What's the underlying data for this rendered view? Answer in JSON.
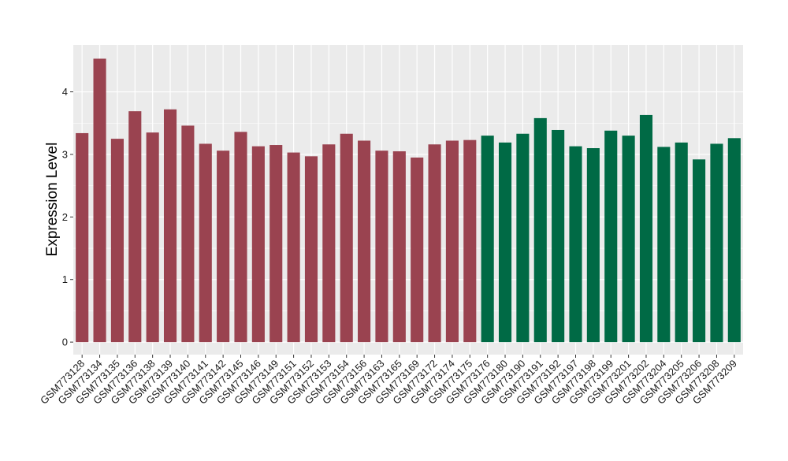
{
  "chart_data": {
    "type": "bar",
    "title": "",
    "xlabel": "",
    "ylabel": "Expression Level",
    "ylim": [
      -0.2,
      4.75
    ],
    "yticks": [
      0,
      1,
      2,
      3,
      4
    ],
    "grid": true,
    "legend": "none",
    "colors": {
      "group1": "#9a4350",
      "group2": "#006a45",
      "panel": "#ebebeb",
      "grid": "#ffffff",
      "text": "#1a1a1a"
    },
    "categories": [
      "GSM773128",
      "GSM773134",
      "GSM773135",
      "GSM773136",
      "GSM773138",
      "GSM773139",
      "GSM773140",
      "GSM773141",
      "GSM773142",
      "GSM773145",
      "GSM773146",
      "GSM773149",
      "GSM773151",
      "GSM773152",
      "GSM773153",
      "GSM773154",
      "GSM773156",
      "GSM773163",
      "GSM773165",
      "GSM773169",
      "GSM773172",
      "GSM773174",
      "GSM773175",
      "GSM773176",
      "GSM773180",
      "GSM773190",
      "GSM773191",
      "GSM773192",
      "GSM773197",
      "GSM773198",
      "GSM773199",
      "GSM773201",
      "GSM773202",
      "GSM773204",
      "GSM773205",
      "GSM773206",
      "GSM773208",
      "GSM773209"
    ],
    "values": [
      3.34,
      4.53,
      3.25,
      3.69,
      3.35,
      3.72,
      3.46,
      3.17,
      3.06,
      3.36,
      3.13,
      3.15,
      3.03,
      2.97,
      3.16,
      3.33,
      3.22,
      3.06,
      3.05,
      2.95,
      3.16,
      3.22,
      3.23,
      3.3,
      3.19,
      3.33,
      3.58,
      3.39,
      3.13,
      3.1,
      3.38,
      3.3,
      3.63,
      3.12,
      3.19,
      2.92,
      3.17,
      3.26
    ],
    "groups": [
      1,
      1,
      1,
      1,
      1,
      1,
      1,
      1,
      1,
      1,
      1,
      1,
      1,
      1,
      1,
      1,
      1,
      1,
      1,
      1,
      1,
      1,
      1,
      2,
      2,
      2,
      2,
      2,
      2,
      2,
      2,
      2,
      2,
      2,
      2,
      2,
      2,
      2
    ]
  }
}
